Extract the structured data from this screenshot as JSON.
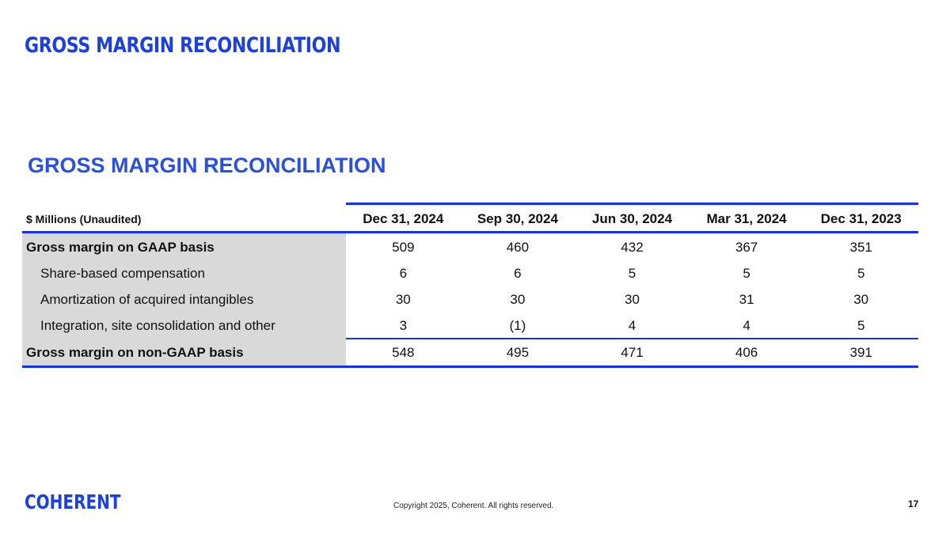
{
  "slide": {
    "title": "GROSS MARGIN RECONCILIATION",
    "subtitle": "GROSS MARGIN RECONCILIATION",
    "page_number": "17",
    "copyright": "Copyright 2025, Coherent. All rights reserved.",
    "logo": "COHERENT"
  },
  "table": {
    "unit_label": "$ Millions (Unaudited)",
    "columns": [
      "Dec 31, 2024",
      "Sep 30, 2024",
      "Jun 30, 2024",
      "Mar 31, 2024",
      "Dec 31, 2023"
    ],
    "rows": [
      {
        "label": "Gross margin on GAAP basis",
        "values": [
          "509",
          "460",
          "432",
          "367",
          "351"
        ]
      },
      {
        "label": "Share-based compensation",
        "values": [
          "6",
          "6",
          "5",
          "5",
          "5"
        ]
      },
      {
        "label": "Amortization of acquired intangibles",
        "values": [
          "30",
          "30",
          "30",
          "31",
          "30"
        ]
      },
      {
        "label": "Integration, site consolidation and other",
        "values": [
          "3",
          "(1)",
          "4",
          "4",
          "5"
        ]
      },
      {
        "label": "Gross margin on non-GAAP basis",
        "values": [
          "548",
          "495",
          "471",
          "406",
          "391"
        ]
      }
    ]
  },
  "colors": {
    "accent": "#1b3fe6",
    "rule": "#1432e8",
    "label_shade": "#d9d9d9"
  }
}
